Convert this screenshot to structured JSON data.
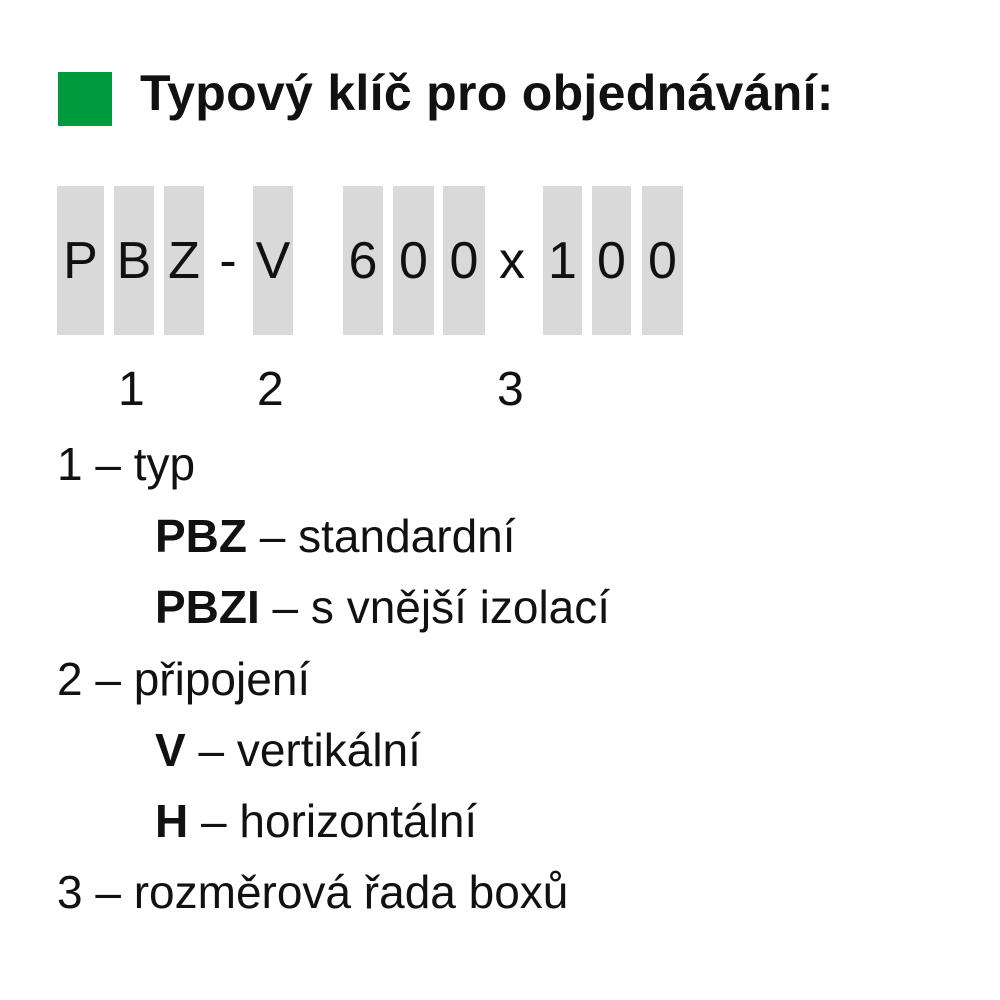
{
  "title": "Typový klíč pro objednávání:",
  "accent_color": "#009a3e",
  "code_cells": [
    {
      "char": "P",
      "boxed": true
    },
    {
      "char": "B",
      "boxed": true
    },
    {
      "char": "Z",
      "boxed": true
    },
    {
      "char": "-",
      "boxed": false
    },
    {
      "char": "V",
      "boxed": true
    },
    {
      "char": "6",
      "boxed": true
    },
    {
      "char": "0",
      "boxed": true
    },
    {
      "char": "0",
      "boxed": true
    },
    {
      "char": "x",
      "boxed": false
    },
    {
      "char": "1",
      "boxed": true
    },
    {
      "char": "0",
      "boxed": true
    },
    {
      "char": "0",
      "boxed": true
    }
  ],
  "indices": [
    "1",
    "2",
    "3"
  ],
  "legend": [
    {
      "text": "1 – typ"
    },
    {
      "code": "PBZ",
      "text": " – standardní"
    },
    {
      "code": "PBZI",
      "text": " – s vnější izolací"
    },
    {
      "text": "2 – připojení"
    },
    {
      "code": "V",
      "text": " – vertikální"
    },
    {
      "code": "H",
      "text": " – horizontální"
    },
    {
      "text": "3 – rozměrová řada boxů"
    }
  ]
}
